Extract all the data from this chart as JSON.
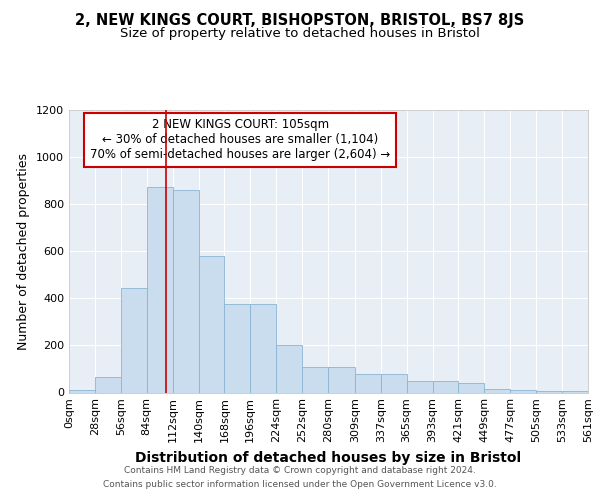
{
  "title1": "2, NEW KINGS COURT, BISHOPSTON, BRISTOL, BS7 8JS",
  "title2": "Size of property relative to detached houses in Bristol",
  "xlabel": "Distribution of detached houses by size in Bristol",
  "ylabel": "Number of detached properties",
  "bin_edges": [
    0,
    28,
    56,
    84,
    112,
    140,
    168,
    196,
    224,
    252,
    280,
    309,
    337,
    365,
    393,
    421,
    449,
    477,
    505,
    533,
    561
  ],
  "bar_heights": [
    10,
    65,
    445,
    875,
    860,
    580,
    375,
    375,
    200,
    110,
    110,
    80,
    80,
    50,
    50,
    40,
    15,
    10,
    5,
    5
  ],
  "bar_color": "#c9ddef",
  "bar_edgecolor": "#8ab4d4",
  "background_color": "#ffffff",
  "axes_background": "#e8eef5",
  "grid_color": "#ffffff",
  "vline_x": 105,
  "vline_color": "#cc0000",
  "annotation_text": "2 NEW KINGS COURT: 105sqm\n← 30% of detached houses are smaller (1,104)\n70% of semi-detached houses are larger (2,604) →",
  "annotation_box_color": "#ffffff",
  "annotation_box_edgecolor": "#cc0000",
  "ylim": [
    0,
    1200
  ],
  "xlim_labels": [
    "0sqm",
    "28sqm",
    "56sqm",
    "84sqm",
    "112sqm",
    "140sqm",
    "168sqm",
    "196sqm",
    "224sqm",
    "252sqm",
    "280sqm",
    "309sqm",
    "337sqm",
    "365sqm",
    "393sqm",
    "421sqm",
    "449sqm",
    "477sqm",
    "505sqm",
    "533sqm",
    "561sqm"
  ],
  "title1_fontsize": 10.5,
  "title2_fontsize": 9.5,
  "xlabel_fontsize": 10,
  "ylabel_fontsize": 9,
  "tick_fontsize": 8,
  "annotation_fontsize": 8.5,
  "footer_line1": "Contains HM Land Registry data © Crown copyright and database right 2024.",
  "footer_line2": "Contains public sector information licensed under the Open Government Licence v3.0.",
  "footer_fontsize": 6.5
}
